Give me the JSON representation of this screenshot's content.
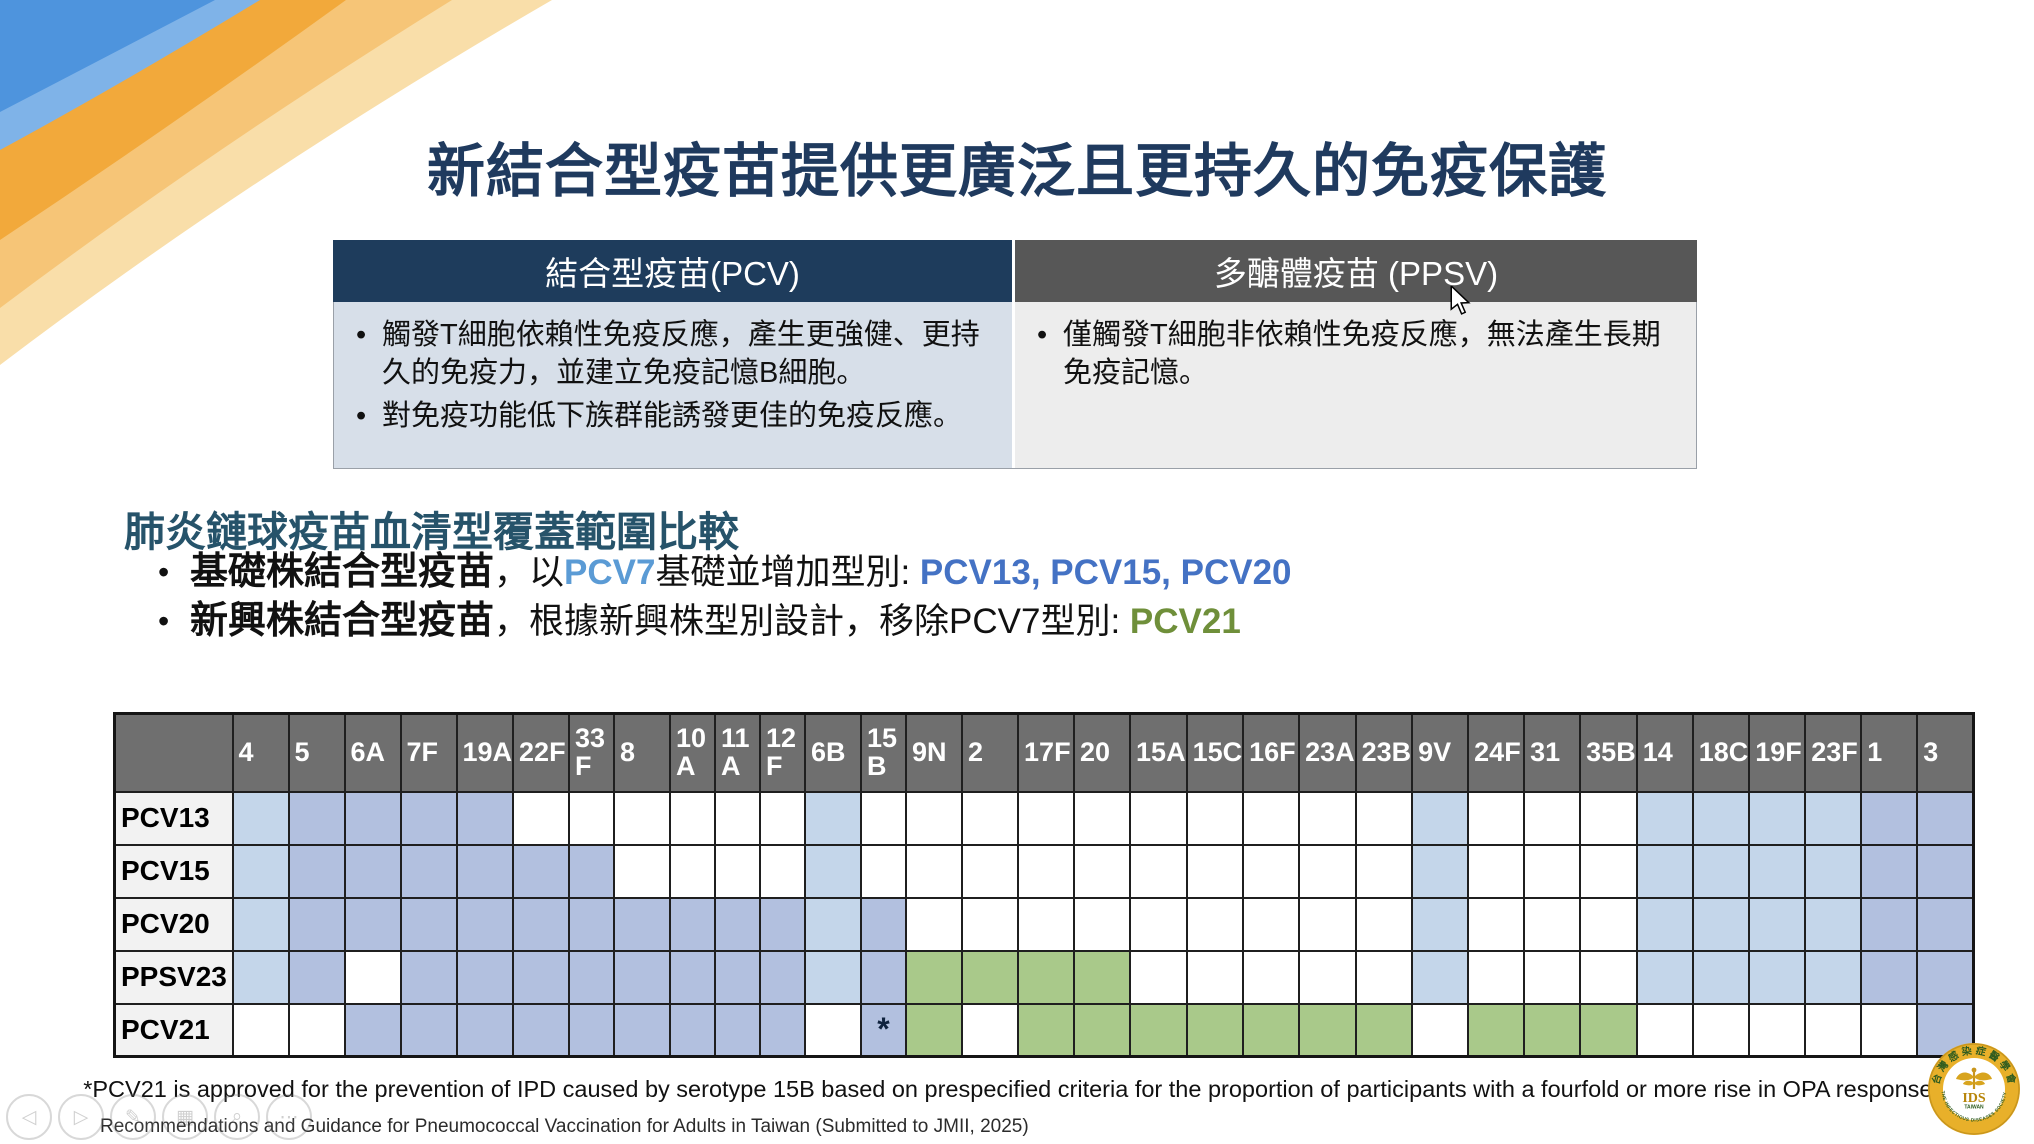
{
  "slide": {
    "title": "新結合型疫苗提供更廣泛且更持久的免疫保護",
    "comparison": {
      "left_header": "結合型疫苗(PCV)",
      "right_header": "多醣體疫苗 (PPSV)",
      "left_bullets": [
        "觸發T細胞依賴性免疫反應，產生更強健、更持久的免疫力，並建立免疫記憶B細胞。",
        "對免疫功能低下族群能誘發更佳的免疫反應。"
      ],
      "right_bullets": [
        "僅觸發T細胞非依賴性免疫反應，無法產生長期免疫記憶。"
      ]
    },
    "section_heading": "肺炎鏈球疫苗血清型覆蓋範圍比較",
    "bullets": {
      "b1": {
        "lead": "基礎株結合型疫苗",
        "mid1": "，以",
        "pcv7": "PCV7",
        "mid2": "基礎並增加型別: ",
        "highlight": "PCV13, PCV15, PCV20"
      },
      "b2": {
        "lead": "新興株結合型疫苗",
        "mid1": "，根據新興株型別設計，移除PCV7型別: ",
        "highlight": "PCV21"
      }
    },
    "footnote": "*PCV21 is approved for the prevention of IPD caused by serotype 15B based on prespecified criteria for the proportion of participants with a fourfold or more rise in OPA responses.",
    "source": "Recommendations and Guidance for Pneumococcal Vaccination for Adults in Taiwan (Submitted to JMII, 2025)"
  },
  "serotype_table": {
    "columns": [
      "4",
      "5",
      "6A",
      "7F",
      "19A",
      "22F",
      "33F",
      "8",
      "10A",
      "11A",
      "12F",
      "6B",
      "15B",
      "9N",
      "2",
      "17F",
      "20",
      "15A",
      "15C",
      "16F",
      "23A",
      "23B",
      "9V",
      "24F",
      "31",
      "35B",
      "14",
      "18C",
      "19F",
      "23F",
      "1",
      "3"
    ],
    "wrap_columns": [
      "33F",
      "10A",
      "11A",
      "12F",
      "15B"
    ],
    "asterisk_mark": "*",
    "cell_colors": {
      "pcv7_serotype_blue": "#C4D6EA",
      "added_serotype_blue": "#B2C0DF",
      "emerging_serotype_green": "#A9C98A"
    },
    "rows": [
      {
        "label": "PCV13",
        "cells": [
          "7",
          "b",
          "b",
          "b",
          "b",
          "",
          "",
          "",
          "",
          "",
          "",
          "7",
          "",
          "",
          "",
          "",
          "",
          "",
          "",
          "",
          "",
          "",
          "7",
          "",
          "",
          "",
          "7",
          "7",
          "7",
          "7",
          "b",
          "b"
        ]
      },
      {
        "label": "PCV15",
        "cells": [
          "7",
          "b",
          "b",
          "b",
          "b",
          "b",
          "b",
          "",
          "",
          "",
          "",
          "7",
          "",
          "",
          "",
          "",
          "",
          "",
          "",
          "",
          "",
          "",
          "7",
          "",
          "",
          "",
          "7",
          "7",
          "7",
          "7",
          "b",
          "b"
        ]
      },
      {
        "label": "PCV20",
        "cells": [
          "7",
          "b",
          "b",
          "b",
          "b",
          "b",
          "b",
          "b",
          "b",
          "b",
          "b",
          "7",
          "b",
          "",
          "",
          "",
          "",
          "",
          "",
          "",
          "",
          "",
          "7",
          "",
          "",
          "",
          "7",
          "7",
          "7",
          "7",
          "b",
          "b"
        ]
      },
      {
        "label": "PPSV23",
        "cells": [
          "7",
          "b",
          "",
          "b",
          "b",
          "b",
          "b",
          "b",
          "b",
          "b",
          "b",
          "7",
          "b",
          "g",
          "g",
          "g",
          "g",
          "",
          "",
          "",
          "",
          "",
          "7",
          "",
          "",
          "",
          "7",
          "7",
          "7",
          "7",
          "b",
          "b"
        ]
      },
      {
        "label": "PCV21",
        "cells": [
          "",
          "",
          "b",
          "b",
          "b",
          "b",
          "b",
          "b",
          "b",
          "b",
          "b",
          "",
          "s",
          "g",
          "",
          "g",
          "g",
          "g",
          "g",
          "g",
          "g",
          "g",
          "",
          "g",
          "g",
          "g",
          "",
          "",
          "",
          "",
          "",
          "b"
        ]
      }
    ]
  },
  "toolbar": {
    "icons": [
      {
        "name": "previous-slide",
        "glyph": "◁"
      },
      {
        "name": "next-slide",
        "glyph": "▷"
      },
      {
        "name": "pen",
        "glyph": "✎"
      },
      {
        "name": "all-slides",
        "glyph": "▦"
      },
      {
        "name": "zoom",
        "glyph": "⌕"
      },
      {
        "name": "more-options",
        "glyph": "⋯"
      }
    ]
  },
  "logo": {
    "org_zh": "台灣感染症醫學會",
    "org_en": "THE INFECTIOUS DISEASES SOCIETY OF TAIWAN",
    "abbr": "IDS",
    "sub": "TAIWAN"
  },
  "accent_colors": {
    "title_navy": "#1F3A5E",
    "pcv_header_navy": "#1E3C5C",
    "ppsv_header_gray": "#575757",
    "pcv7_text_blue": "#5B9BD5",
    "pcv_family_text_blue": "#4472C4",
    "pcv21_text_green": "#6F8F3A"
  }
}
